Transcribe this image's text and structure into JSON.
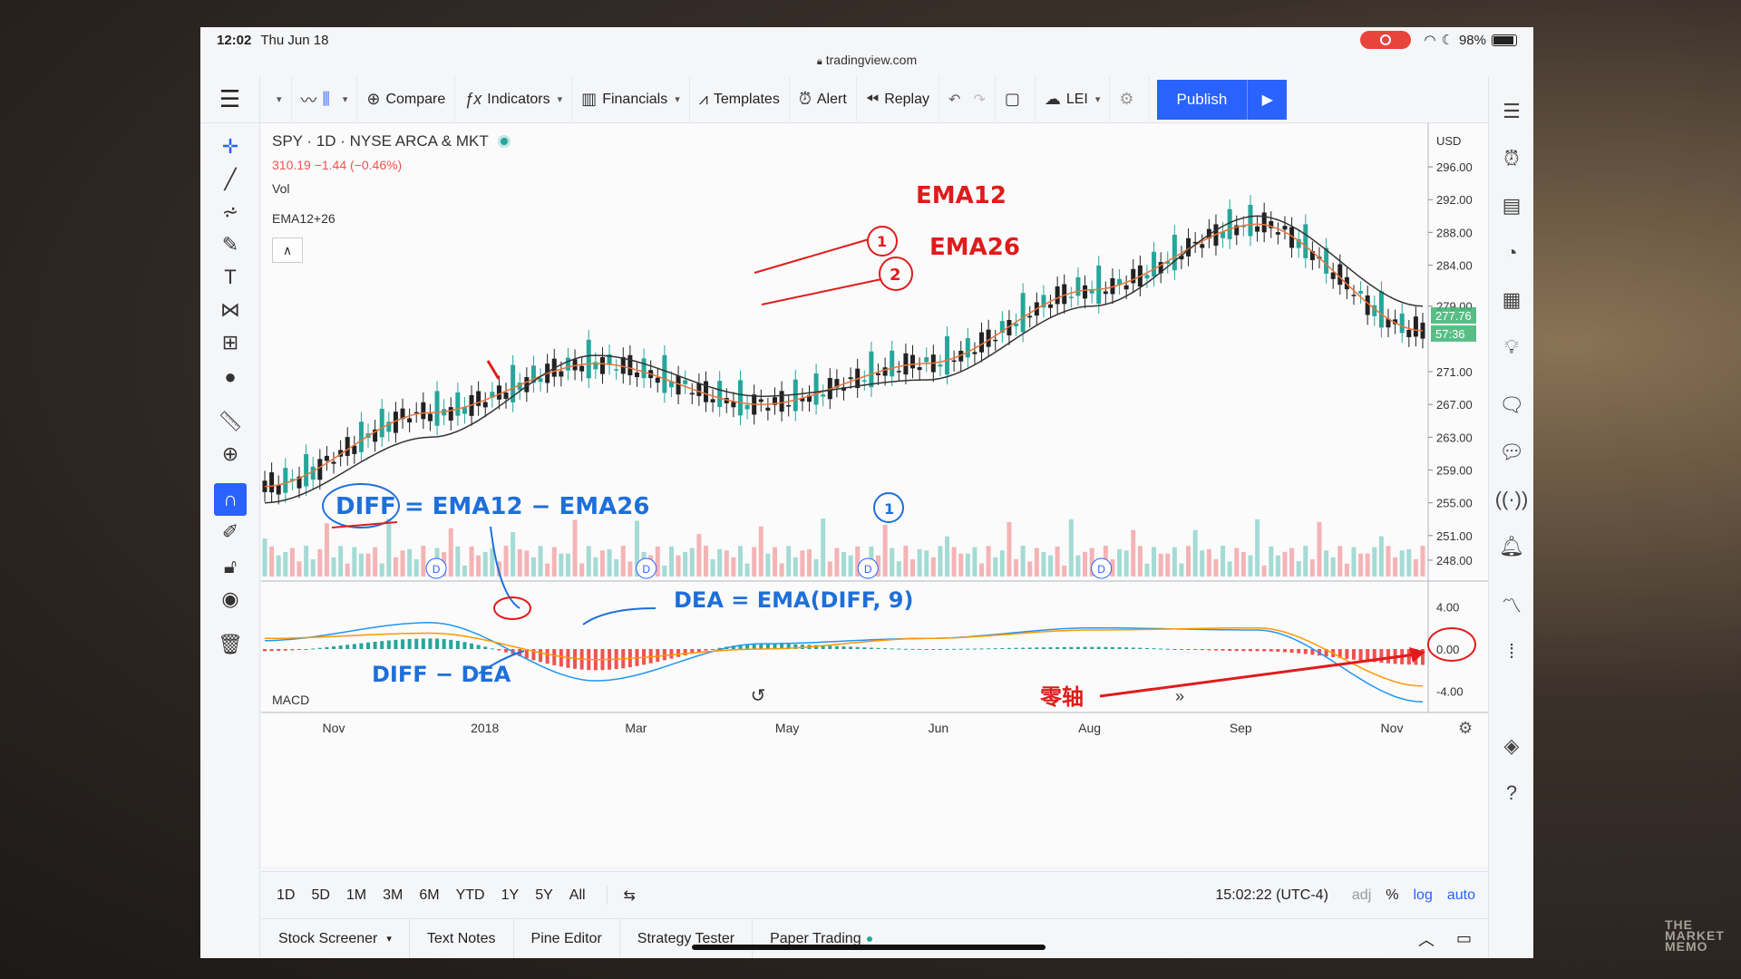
{
  "status": {
    "time": "12:02",
    "date": "Thu Jun 18",
    "battery": "98%"
  },
  "browser": {
    "url": "tradingview.com"
  },
  "toolbar": {
    "compare": "Compare",
    "indicators": "Indicators",
    "financials": "Financials",
    "templates": "Templates",
    "alert": "Alert",
    "replay": "Replay",
    "layout": "LEI",
    "publish": "Publish"
  },
  "legend": {
    "symbol": "SPY · 1D · NYSE ARCA & MKT",
    "price_change": "310.19  −1.44 (−0.46%)",
    "vol": "Vol",
    "ema": "EMA12+26",
    "macd": "MACD"
  },
  "axis": {
    "currency": "USD",
    "price_ticks": [
      "296.00",
      "292.00",
      "288.00",
      "284.00",
      "279.00",
      "271.00",
      "267.00",
      "263.00",
      "259.00",
      "255.00",
      "251.00",
      "248.00"
    ],
    "price_badges": [
      "277.76",
      "57:36"
    ],
    "macd_ticks": [
      "4.00",
      "0.00",
      "-4.00"
    ],
    "time_ticks": [
      "Nov",
      "2018",
      "Mar",
      "May",
      "Jun",
      "Aug",
      "Sep",
      "Nov"
    ]
  },
  "annotations": {
    "ema12_num": "1",
    "ema12": "EMA12",
    "ema26_num": "2",
    "ema26": "EMA26",
    "diff_formula": "DIFF = EMA12 − EMA26",
    "diff_num": "1",
    "dea_formula": "DEA = EMA(DIFF, 9)",
    "hist": "DIFF − DEA",
    "zero_axis": "零轴",
    "dividend": "D"
  },
  "datebar": {
    "ranges": [
      "1D",
      "5D",
      "1M",
      "3M",
      "6M",
      "YTD",
      "1Y",
      "5Y",
      "All"
    ],
    "clock": "15:02:22 (UTC-4)",
    "adj": "adj",
    "pct": "%",
    "log": "log",
    "auto": "auto"
  },
  "panel_tabs": [
    "Stock Screener",
    "Text Notes",
    "Pine Editor",
    "Strategy Tester",
    "Paper Trading"
  ],
  "watermark": "THE MARKET MEMO",
  "colors": {
    "up": "#26a69a",
    "down": "#222222",
    "ema12": "#e8743b",
    "ema26": "#333333",
    "macd": "#2196f3",
    "signal": "#ff9800",
    "accent": "#2962ff",
    "ink_red": "#e01b1b",
    "ink_blue": "#1e6fd9"
  },
  "chart_data": {
    "type": "line",
    "title": "SPY · 1D · NYSE ARCA & MKT",
    "x": [
      "Nov",
      "2018",
      "Mar",
      "May",
      "Jun",
      "Aug",
      "Sep",
      "Nov"
    ],
    "series": [
      {
        "name": "EMA12",
        "values": [
          257,
          266,
          272,
          267,
          272,
          281,
          289,
          276
        ]
      },
      {
        "name": "EMA26",
        "values": [
          255,
          263,
          273,
          268,
          270,
          279,
          290,
          279
        ]
      }
    ],
    "ylim": [
      246,
      298
    ],
    "macd": {
      "ylim": [
        -6,
        6
      ],
      "diff": [
        0.8,
        2.5,
        -3.0,
        0.5,
        1.0,
        2.0,
        1.8,
        -5.0
      ],
      "dea": [
        1.0,
        1.5,
        -1.0,
        0.0,
        1.0,
        1.8,
        2.0,
        -3.5
      ]
    }
  }
}
